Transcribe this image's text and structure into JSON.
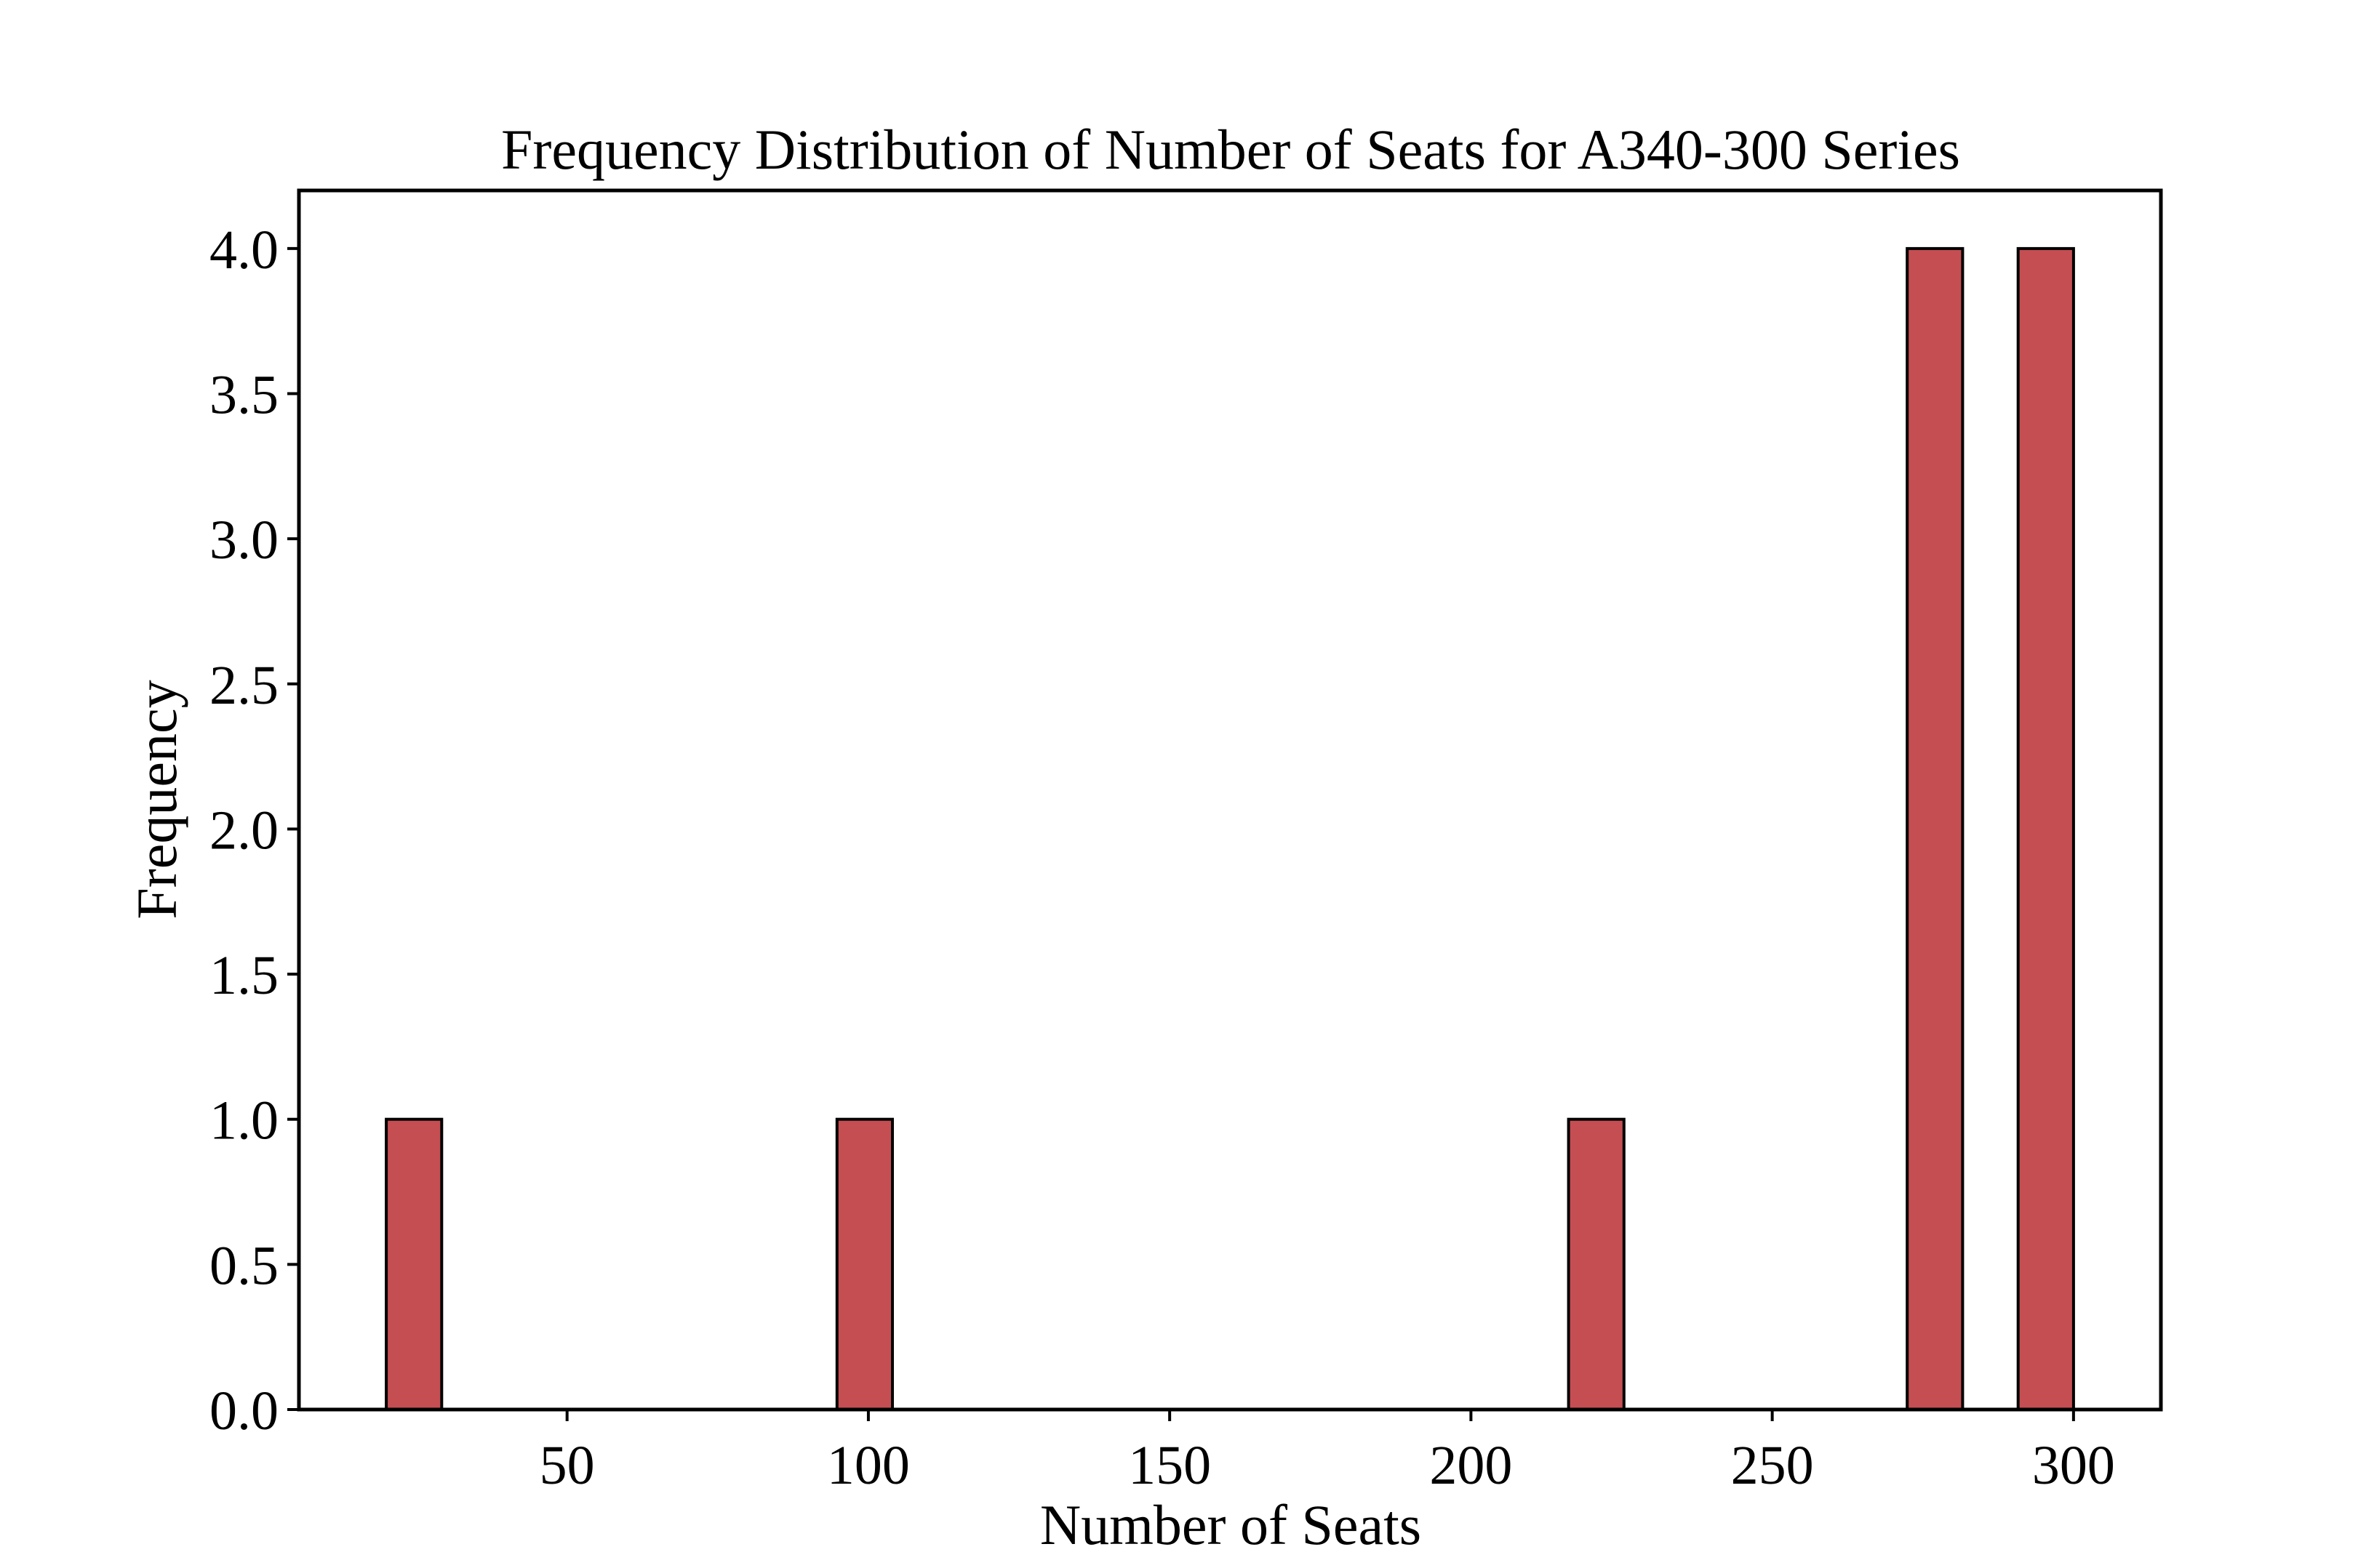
{
  "chart_data": {
    "type": "bar",
    "subtype": "histogram",
    "title": "Frequency Distribution of Number of Seats for A340-300 Series",
    "xlabel": "Number of Seats",
    "ylabel": "Frequency",
    "xlim": [
      5.5,
      314.5
    ],
    "ylim": [
      0,
      4.2
    ],
    "bin_width": 9.2,
    "bins": [
      {
        "start": 20,
        "end": 29.2,
        "count": 1
      },
      {
        "start": 94.8,
        "end": 104,
        "count": 1
      },
      {
        "start": 216.2,
        "end": 225.4,
        "count": 1
      },
      {
        "start": 272.4,
        "end": 281.6,
        "count": 4
      },
      {
        "start": 290.8,
        "end": 300,
        "count": 4
      }
    ],
    "xticks": [
      50,
      100,
      150,
      200,
      250,
      300
    ],
    "xtick_labels": [
      "50",
      "100",
      "150",
      "200",
      "250",
      "300"
    ],
    "yticks": [
      0,
      0.5,
      1,
      1.5,
      2,
      2.5,
      3,
      3.5,
      4
    ],
    "ytick_labels": [
      "0.0",
      "0.5",
      "1.0",
      "1.5",
      "2.0",
      "2.5",
      "3.0",
      "3.5",
      "4.0"
    ],
    "grid": false,
    "bar_color": "#c44e52",
    "edge_color": "#000000"
  }
}
